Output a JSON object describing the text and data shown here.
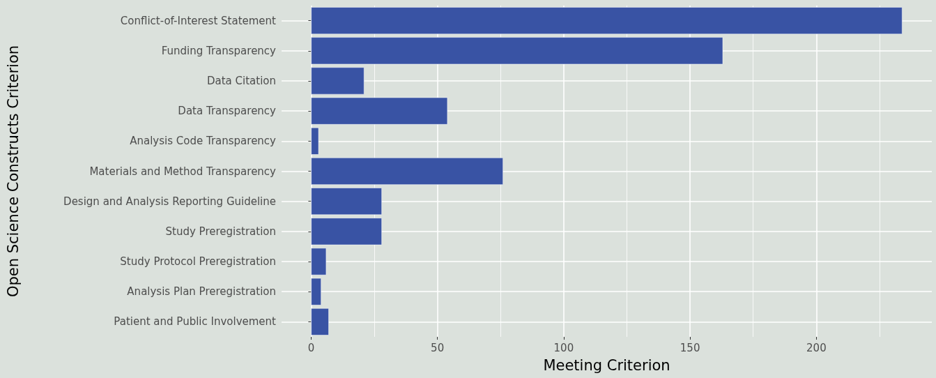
{
  "chart_data": {
    "type": "bar",
    "orientation": "horizontal",
    "xlabel": "Meeting Criterion",
    "ylabel": "Open Science Constructs Criterion",
    "categories": [
      "Conflict-of-Interest Statement",
      "Funding Transparency",
      "Data Citation",
      "Data Transparency",
      "Analysis Code Transparency",
      "Materials and Method Transparency",
      "Design and Analysis Reporting Guideline",
      "Study Preregistration",
      "Study Protocol Preregistration",
      "Analysis Plan Preregistration",
      "Patient and Public Involvement"
    ],
    "values": [
      234,
      163,
      21,
      54,
      3,
      76,
      28,
      28,
      6,
      4,
      7
    ],
    "color": "#3953a4",
    "xlim": [
      -11.7,
      245.7
    ],
    "xticks": [
      0,
      {
        "value": 25,
        "label": null
      },
      50,
      {
        "value": 75,
        "label": null
      },
      100,
      {
        "value": 125,
        "label": null
      },
      150,
      {
        "value": 175,
        "label": null
      },
      200,
      {
        "value": 225,
        "label": null
      }
    ],
    "grid": true
  }
}
